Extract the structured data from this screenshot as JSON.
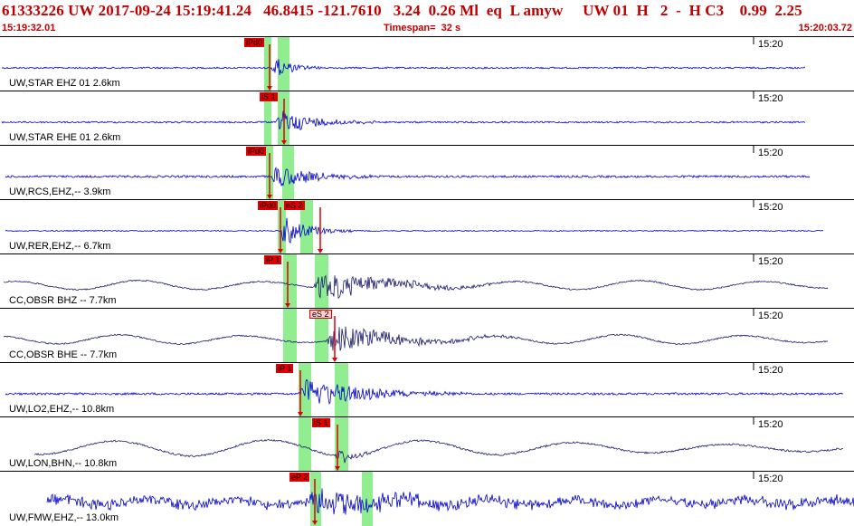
{
  "header": {
    "title": "61333226 UW 2017-09-24 15:19:41.24   46.8415 -121.7610   3.24  0.26 Ml  eq  L amyw     UW 01  H   2  -  H C3    0.99  2.25",
    "start_time": "15:19:32.01",
    "timespan": "Timespan=  32 s",
    "end_time": "15:20:03.72"
  },
  "colors": {
    "header_text": "#c00000",
    "trace_blue": "#0000cc",
    "trace_navy": "#1a1a6e",
    "pick_red": "#e00000",
    "window_green": "#90ee90"
  },
  "panels": [
    {
      "label": "UW,STAR EHZ 01 2.6km",
      "tick": "15:20",
      "color": "blue",
      "picks": [
        {
          "text": "iPd0",
          "style": "red"
        }
      ]
    },
    {
      "label": "UW,STAR EHE 01 2.6km",
      "tick": "15:20",
      "color": "blue",
      "picks": [
        {
          "text": "iS 1",
          "style": "red"
        }
      ]
    },
    {
      "label": "UW,RCS,EHZ,-- 3.9km",
      "tick": "15:20",
      "color": "blue",
      "picks": [
        {
          "text": "iPd0",
          "style": "red"
        }
      ]
    },
    {
      "label": "UW,RER,EHZ,-- 6.7km",
      "tick": "15:20",
      "color": "blue",
      "picks": [
        {
          "text": "iPd0",
          "style": "red"
        },
        {
          "text": "eS 2",
          "style": "red"
        }
      ]
    },
    {
      "label": "CC,OBSR BHZ -- 7.7km",
      "tick": "15:20",
      "color": "navy",
      "picks": [
        {
          "text": "iP 1",
          "style": "red"
        }
      ]
    },
    {
      "label": "CC,OBSR BHE -- 7.7km",
      "tick": "15:20",
      "color": "navy",
      "picks": [
        {
          "text": "eS 2",
          "style": "pink"
        }
      ]
    },
    {
      "label": "UW,LO2,EHZ,-- 10.8km",
      "tick": "15:20",
      "color": "blue",
      "picks": [
        {
          "text": "iP 1",
          "style": "red"
        }
      ]
    },
    {
      "label": "UW,LON,BHN,-- 10.8km",
      "tick": "15:20",
      "color": "navy",
      "picks": [
        {
          "text": "iS 1",
          "style": "red"
        }
      ]
    },
    {
      "label": "UW,FMW,EHZ,-- 13.0km",
      "tick": "15:20",
      "color": "blue",
      "picks": [
        {
          "text": "eP 2",
          "style": "red"
        }
      ]
    }
  ]
}
